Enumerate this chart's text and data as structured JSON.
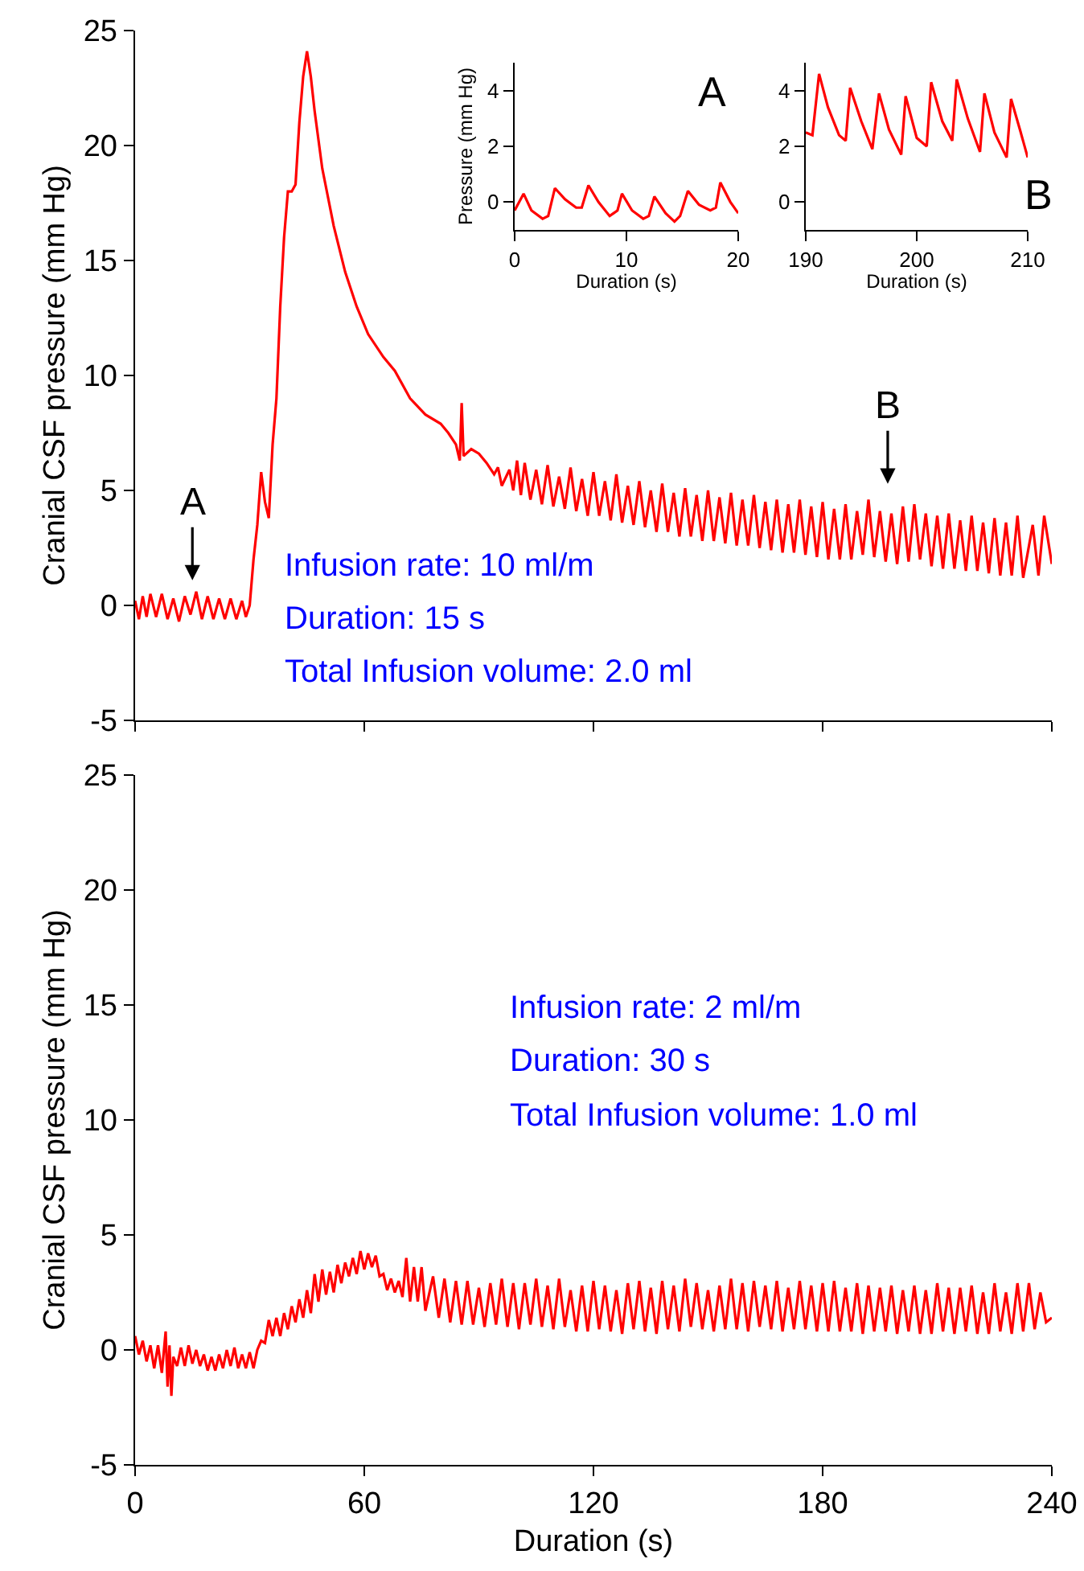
{
  "chart_data": [
    {
      "type": "line",
      "ylabel": "Cranial CSF pressure (mm Hg)",
      "xlim": [
        0,
        240
      ],
      "xticks": [
        {
          "value": 0,
          "label": null
        },
        {
          "value": 60,
          "label": null
        },
        {
          "value": 120,
          "label": null
        },
        {
          "value": 180,
          "label": null
        },
        {
          "value": 240,
          "label": null
        }
      ],
      "ylim": [
        -5,
        25
      ],
      "yticks": [
        -5,
        0,
        5,
        10,
        15,
        20,
        25
      ],
      "tick_labels": "y",
      "annotations": [
        "Infusion rate: 10 ml/m",
        "Duration: 15 s",
        "Total Infusion volume: 2.0 ml",
        "A",
        "B"
      ],
      "series": [
        {
          "color": "#ff0000",
          "x": [
            0,
            1,
            2,
            3,
            4,
            5.5,
            7,
            8.5,
            10,
            11.5,
            13,
            14.5,
            16,
            17.5,
            19,
            20.5,
            22,
            23.5,
            25,
            26.5,
            28,
            29,
            30,
            31,
            32,
            33,
            34,
            35,
            36,
            37,
            38,
            39,
            40,
            41,
            42,
            43,
            44,
            45,
            46,
            47,
            49,
            52,
            55,
            58,
            61,
            65,
            68,
            72,
            76,
            80,
            82,
            84,
            85,
            85.5,
            86,
            88,
            90,
            92,
            94,
            95,
            96,
            98,
            99,
            100,
            101,
            102,
            103.5,
            105,
            106.5,
            108,
            109.5,
            111,
            112.5,
            114,
            115.5,
            117,
            118.5,
            120,
            121.5,
            123,
            124.5,
            126,
            127.5,
            129,
            130.5,
            132,
            133.5,
            135,
            136.5,
            138,
            139.5,
            141,
            142.5,
            144,
            145.5,
            147,
            148.5,
            150,
            151.5,
            153,
            154.5,
            156,
            157.5,
            159,
            160.5,
            162,
            163.5,
            165,
            166.5,
            168,
            169.5,
            171,
            172.5,
            174,
            175.5,
            177,
            178.5,
            180,
            181.5,
            183,
            184.5,
            186,
            187.5,
            189,
            190.5,
            192,
            193.5,
            195,
            196.5,
            198,
            199.5,
            201,
            202.5,
            204,
            205.5,
            207,
            208.5,
            210,
            211.5,
            213,
            214.5,
            216,
            217.5,
            219,
            220.5,
            222,
            223.5,
            225,
            226.5,
            228,
            229.5,
            231,
            232.5,
            235,
            236.5,
            238,
            240
          ],
          "values": [
            0.2,
            -0.6,
            0.4,
            -0.5,
            0.5,
            -0.5,
            0.5,
            -0.6,
            0.3,
            -0.7,
            0.4,
            -0.4,
            0.6,
            -0.6,
            0.4,
            -0.6,
            0.3,
            -0.6,
            0.3,
            -0.6,
            0.2,
            -0.5,
            0.0,
            2.0,
            3.5,
            5.8,
            4.5,
            3.8,
            7.0,
            9,
            13,
            16,
            18,
            18.0,
            18.3,
            21,
            23,
            24.1,
            23,
            21.5,
            19,
            16.5,
            14.5,
            13,
            11.8,
            10.8,
            10.2,
            9,
            8.3,
            7.9,
            7.5,
            7,
            6.3,
            8.8,
            6.5,
            6.8,
            6.6,
            6.2,
            5.7,
            6.0,
            5.2,
            5.9,
            5.0,
            6.3,
            4.8,
            6.2,
            4.6,
            5.9,
            4.4,
            6.1,
            4.3,
            5.6,
            4.2,
            6.0,
            4.1,
            5.5,
            3.9,
            5.8,
            3.9,
            5.4,
            3.7,
            5.7,
            3.6,
            5.2,
            3.5,
            5.4,
            3.4,
            5.0,
            3.2,
            5.3,
            3.2,
            4.9,
            3.0,
            5.1,
            3.0,
            4.8,
            2.8,
            5.0,
            2.8,
            4.7,
            2.7,
            4.9,
            2.6,
            4.6,
            2.6,
            4.8,
            2.5,
            4.5,
            2.4,
            4.6,
            2.3,
            4.4,
            2.3,
            4.6,
            2.2,
            4.3,
            2.1,
            4.5,
            2.0,
            4.2,
            2.0,
            4.4,
            2.0,
            4.1,
            2.2,
            4.6,
            2.1,
            4.1,
            1.9,
            4.0,
            1.8,
            4.3,
            1.9,
            4.4,
            2.0,
            4.0,
            1.7,
            3.9,
            1.6,
            4.0,
            1.6,
            3.7,
            1.5,
            3.9,
            1.5,
            3.6,
            1.4,
            3.8,
            1.3,
            3.6,
            1.3,
            3.9,
            1.2,
            3.5,
            1.3,
            3.9,
            1.8
          ]
        }
      ]
    },
    {
      "type": "line",
      "xlabel": "Duration (s)",
      "ylabel": "Pressure (mm Hg)",
      "xlim": [
        0,
        20
      ],
      "xticks": [
        0,
        10,
        20
      ],
      "ylim": [
        -1,
        5
      ],
      "yticks": [
        0,
        2,
        4
      ],
      "annotations": [
        "A"
      ],
      "series": [
        {
          "color": "#ff0000",
          "x": [
            0,
            0.8,
            1.5,
            2.5,
            3,
            3.6,
            4.5,
            5.5,
            6,
            6.6,
            7.5,
            8.5,
            9.2,
            9.6,
            10.5,
            11.5,
            12,
            12.5,
            13.5,
            14.3,
            14.8,
            15.5,
            16.5,
            17.5,
            18,
            18.4,
            19.3,
            20
          ],
          "values": [
            -0.3,
            0.3,
            -0.3,
            -0.6,
            -0.5,
            0.5,
            0.1,
            -0.2,
            -0.2,
            0.6,
            0.0,
            -0.5,
            -0.3,
            0.3,
            -0.3,
            -0.6,
            -0.5,
            0.2,
            -0.4,
            -0.7,
            -0.5,
            0.4,
            -0.1,
            -0.3,
            -0.2,
            0.7,
            0.0,
            -0.4
          ]
        }
      ]
    },
    {
      "type": "line",
      "xlabel": "Duration (s)",
      "xlim": [
        190,
        210
      ],
      "xticks": [
        190,
        200,
        210
      ],
      "ylim": [
        -1,
        5
      ],
      "yticks": [
        0,
        2,
        4
      ],
      "annotations": [
        "B"
      ],
      "series": [
        {
          "color": "#ff0000",
          "x": [
            190,
            190.6,
            191.2,
            192,
            193,
            193.6,
            194,
            195,
            196,
            196.6,
            197.5,
            198.6,
            199,
            200,
            200.9,
            201.3,
            202.3,
            203.2,
            203.6,
            204.6,
            205.7,
            206.1,
            207,
            208.1,
            208.5,
            209.3,
            210
          ],
          "values": [
            2.5,
            2.4,
            4.6,
            3.4,
            2.4,
            2.2,
            4.1,
            2.9,
            1.9,
            3.9,
            2.6,
            1.7,
            3.8,
            2.3,
            2.0,
            4.3,
            2.9,
            2.2,
            4.4,
            3.0,
            1.8,
            3.9,
            2.5,
            1.6,
            3.7,
            2.6,
            1.6
          ]
        }
      ]
    },
    {
      "type": "line",
      "xlabel": "Duration (s)",
      "ylabel": "Cranial CSF pressure (mm Hg)",
      "xlim": [
        0,
        240
      ],
      "xticks": [
        0,
        60,
        120,
        180,
        240
      ],
      "ylim": [
        -5,
        25
      ],
      "yticks": [
        -5,
        0,
        5,
        10,
        15,
        20,
        25
      ],
      "annotations": [
        "Infusion rate: 2 ml/m",
        "Duration: 30 s",
        "Total Infusion volume: 1.0 ml"
      ],
      "series": [
        {
          "color": "#ff0000",
          "x": [
            0,
            1,
            2,
            3,
            4,
            5,
            6,
            7,
            8,
            8.5,
            9,
            9.5,
            10,
            11,
            12,
            13,
            14,
            15,
            16,
            17,
            18,
            19,
            20,
            21,
            22,
            23,
            24,
            25,
            26,
            27,
            28,
            29,
            30,
            31,
            32,
            33,
            34,
            35,
            36,
            37,
            38,
            39,
            40,
            41,
            42,
            43,
            44,
            45,
            46,
            47,
            48,
            49,
            50,
            51,
            52,
            53,
            54,
            55,
            56,
            57,
            58,
            59,
            60,
            61,
            62,
            63,
            64,
            65,
            66,
            67,
            68,
            69,
            70,
            71,
            72,
            73,
            74,
            75,
            76,
            78,
            79.5,
            81,
            82.5,
            84,
            85.5,
            87,
            88.5,
            90,
            91.5,
            93,
            94.5,
            96,
            97.5,
            99,
            100.5,
            102,
            103.5,
            105,
            106.5,
            108,
            109.5,
            111,
            112.5,
            114,
            115.5,
            117,
            118.5,
            120,
            121.5,
            123,
            124.5,
            126,
            127.5,
            129,
            130.5,
            132,
            133.5,
            135,
            136.5,
            138,
            139.5,
            141,
            142.5,
            144,
            145.5,
            147,
            148.5,
            150,
            151.5,
            153,
            154.5,
            156,
            157.5,
            159,
            160.5,
            162,
            163.5,
            165,
            166.5,
            168,
            169.5,
            171,
            172.5,
            174,
            175.5,
            177,
            178.5,
            180,
            181.5,
            183,
            184.5,
            186,
            187.5,
            189,
            190.5,
            192,
            193.5,
            195,
            196.5,
            198,
            199.5,
            201,
            202.5,
            204,
            205.5,
            207,
            208.5,
            210,
            211.5,
            213,
            214.5,
            216,
            217.5,
            219,
            220.5,
            222,
            223.5,
            225,
            226.5,
            228,
            229.5,
            231,
            232.5,
            234,
            235.5,
            237,
            238.5,
            240
          ],
          "values": [
            0.6,
            -0.2,
            0.4,
            -0.5,
            0.2,
            -0.8,
            0.2,
            -1.0,
            0.8,
            -1.6,
            0.2,
            -2.0,
            -0.3,
            -0.7,
            0.1,
            -0.7,
            0.2,
            -0.6,
            0.0,
            -0.7,
            -0.2,
            -0.9,
            -0.3,
            -0.9,
            -0.2,
            -0.8,
            0.0,
            -0.7,
            0.1,
            -0.8,
            -0.2,
            -0.8,
            -0.1,
            -0.8,
            0.0,
            0.4,
            0.3,
            1.3,
            0.6,
            1.4,
            0.6,
            1.6,
            0.9,
            1.9,
            1.2,
            2.2,
            1.4,
            2.6,
            1.6,
            3.3,
            2.1,
            3.5,
            2.4,
            3.4,
            2.5,
            3.7,
            2.9,
            3.8,
            3.2,
            4.0,
            3.3,
            4.3,
            3.5,
            4.2,
            3.6,
            4.1,
            3.2,
            3.3,
            2.6,
            3.1,
            2.5,
            3.0,
            2.3,
            4.0,
            2.1,
            3.6,
            2.1,
            3.6,
            1.7,
            3.2,
            1.4,
            3.1,
            1.2,
            3.0,
            1.1,
            3.0,
            1.1,
            2.7,
            1.0,
            2.9,
            1.1,
            3.1,
            1.0,
            2.9,
            0.9,
            2.9,
            1.1,
            3.1,
            1.0,
            2.8,
            0.9,
            3.1,
            1.0,
            2.6,
            0.8,
            2.8,
            0.8,
            3.0,
            0.9,
            2.8,
            0.8,
            2.6,
            0.7,
            2.9,
            0.9,
            3.0,
            0.8,
            2.7,
            0.7,
            3.0,
            0.9,
            2.8,
            0.8,
            3.1,
            1.0,
            2.9,
            0.9,
            2.6,
            0.8,
            2.8,
            0.9,
            3.1,
            0.9,
            2.9,
            0.8,
            3.0,
            1.0,
            2.8,
            0.9,
            3.0,
            0.8,
            2.7,
            0.9,
            3.0,
            0.9,
            2.8,
            0.8,
            2.9,
            0.8,
            3.0,
            0.8,
            2.7,
            0.8,
            2.9,
            0.7,
            2.8,
            0.8,
            2.7,
            0.8,
            2.8,
            0.7,
            2.6,
            0.8,
            2.8,
            0.7,
            2.6,
            0.7,
            2.9,
            0.8,
            2.7,
            0.7,
            2.7,
            0.8,
            2.8,
            0.7,
            2.5,
            0.7,
            2.9,
            0.8,
            2.5,
            0.7,
            2.9,
            0.8,
            2.9,
            0.9,
            2.5,
            1.2,
            1.4
          ]
        }
      ]
    }
  ]
}
